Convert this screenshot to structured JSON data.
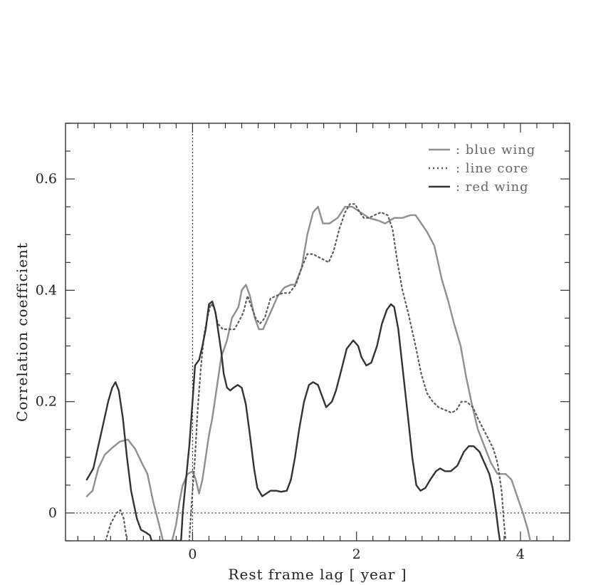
{
  "chart_data": {
    "type": "line",
    "title": "",
    "xlabel": "Rest frame lag [ year ]",
    "ylabel": "Correlation coefficient",
    "xlim": [
      -1.55,
      4.6
    ],
    "ylim": [
      -0.05,
      0.7
    ],
    "x_ticks": [
      0,
      2,
      4
    ],
    "x_tick_labels": [
      "0",
      "2",
      "4"
    ],
    "y_ticks": [
      0,
      0.2,
      0.4,
      0.6
    ],
    "y_tick_labels": [
      "0",
      "0.2",
      "0.4",
      "0.6"
    ],
    "grid": false,
    "legend_position": "top-right",
    "reference_lines": [
      {
        "orientation": "vertical",
        "value": 0,
        "style": "dotted"
      },
      {
        "orientation": "horizontal",
        "value": 0,
        "style": "dotted"
      }
    ],
    "series": [
      {
        "name": ": blue wing",
        "color": "#8f8f8f",
        "style": "solid",
        "points": [
          [
            -1.29,
            0.03
          ],
          [
            -1.22,
            0.04
          ],
          [
            -1.15,
            0.08
          ],
          [
            -1.07,
            0.105
          ],
          [
            -0.98,
            0.117
          ],
          [
            -0.89,
            0.128
          ],
          [
            -0.79,
            0.132
          ],
          [
            -0.7,
            0.115
          ],
          [
            -0.62,
            0.09
          ],
          [
            -0.55,
            0.07
          ],
          [
            -0.48,
            0.02
          ],
          [
            -0.41,
            -0.02
          ],
          [
            -0.36,
            -0.05
          ],
          [
            -0.25,
            -0.05
          ],
          [
            -0.2,
            -0.02
          ],
          [
            -0.16,
            0.02
          ],
          [
            -0.12,
            0.05
          ],
          [
            -0.06,
            0.07
          ],
          [
            0.0,
            0.075
          ],
          [
            0.04,
            0.06
          ],
          [
            0.08,
            0.035
          ],
          [
            0.12,
            0.06
          ],
          [
            0.16,
            0.1
          ],
          [
            0.2,
            0.14
          ],
          [
            0.24,
            0.17
          ],
          [
            0.28,
            0.21
          ],
          [
            0.35,
            0.28
          ],
          [
            0.42,
            0.31
          ],
          [
            0.48,
            0.35
          ],
          [
            0.56,
            0.37
          ],
          [
            0.6,
            0.4
          ],
          [
            0.65,
            0.41
          ],
          [
            0.7,
            0.39
          ],
          [
            0.76,
            0.35
          ],
          [
            0.81,
            0.33
          ],
          [
            0.86,
            0.33
          ],
          [
            0.95,
            0.36
          ],
          [
            1.04,
            0.39
          ],
          [
            1.12,
            0.405
          ],
          [
            1.2,
            0.41
          ],
          [
            1.25,
            0.41
          ],
          [
            1.33,
            0.44
          ],
          [
            1.4,
            0.5
          ],
          [
            1.47,
            0.54
          ],
          [
            1.53,
            0.55
          ],
          [
            1.59,
            0.52
          ],
          [
            1.67,
            0.52
          ],
          [
            1.77,
            0.53
          ],
          [
            1.86,
            0.55
          ],
          [
            1.95,
            0.55
          ],
          [
            2.05,
            0.54
          ],
          [
            2.15,
            0.53
          ],
          [
            2.27,
            0.525
          ],
          [
            2.35,
            0.52
          ],
          [
            2.46,
            0.53
          ],
          [
            2.56,
            0.53
          ],
          [
            2.66,
            0.535
          ],
          [
            2.72,
            0.535
          ],
          [
            2.79,
            0.52
          ],
          [
            2.86,
            0.505
          ],
          [
            2.95,
            0.48
          ],
          [
            3.04,
            0.42
          ],
          [
            3.12,
            0.38
          ],
          [
            3.19,
            0.34
          ],
          [
            3.27,
            0.3
          ],
          [
            3.33,
            0.25
          ],
          [
            3.4,
            0.2
          ],
          [
            3.48,
            0.15
          ],
          [
            3.56,
            0.12
          ],
          [
            3.64,
            0.09
          ],
          [
            3.72,
            0.07
          ],
          [
            3.82,
            0.07
          ],
          [
            3.89,
            0.06
          ],
          [
            3.96,
            0.03
          ],
          [
            4.03,
            0.0
          ],
          [
            4.09,
            -0.03
          ],
          [
            4.12,
            -0.05
          ]
        ]
      },
      {
        "name": ": line core",
        "color": "#5a5a5a",
        "style": "dotted",
        "points": [
          [
            -1.06,
            -0.05
          ],
          [
            -1.0,
            -0.02
          ],
          [
            -0.93,
            0.0
          ],
          [
            -0.88,
            0.005
          ],
          [
            -0.84,
            -0.01
          ],
          [
            -0.8,
            -0.05
          ],
          [
            -0.04,
            -0.05
          ],
          [
            -0.01,
            0.02
          ],
          [
            0.03,
            0.1
          ],
          [
            0.06,
            0.18
          ],
          [
            0.1,
            0.26
          ],
          [
            0.14,
            0.32
          ],
          [
            0.18,
            0.35
          ],
          [
            0.22,
            0.375
          ],
          [
            0.26,
            0.37
          ],
          [
            0.31,
            0.34
          ],
          [
            0.37,
            0.33
          ],
          [
            0.45,
            0.33
          ],
          [
            0.51,
            0.33
          ],
          [
            0.55,
            0.34
          ],
          [
            0.62,
            0.36
          ],
          [
            0.67,
            0.39
          ],
          [
            0.72,
            0.37
          ],
          [
            0.77,
            0.35
          ],
          [
            0.82,
            0.34
          ],
          [
            0.88,
            0.35
          ],
          [
            0.95,
            0.385
          ],
          [
            1.02,
            0.39
          ],
          [
            1.1,
            0.395
          ],
          [
            1.18,
            0.395
          ],
          [
            1.26,
            0.41
          ],
          [
            1.33,
            0.44
          ],
          [
            1.4,
            0.465
          ],
          [
            1.47,
            0.465
          ],
          [
            1.53,
            0.46
          ],
          [
            1.6,
            0.455
          ],
          [
            1.66,
            0.45
          ],
          [
            1.72,
            0.47
          ],
          [
            1.79,
            0.51
          ],
          [
            1.86,
            0.54
          ],
          [
            1.92,
            0.555
          ],
          [
            1.98,
            0.555
          ],
          [
            2.04,
            0.54
          ],
          [
            2.09,
            0.53
          ],
          [
            2.15,
            0.53
          ],
          [
            2.22,
            0.535
          ],
          [
            2.3,
            0.54
          ],
          [
            2.38,
            0.535
          ],
          [
            2.44,
            0.51
          ],
          [
            2.5,
            0.45
          ],
          [
            2.56,
            0.4
          ],
          [
            2.63,
            0.36
          ],
          [
            2.72,
            0.3
          ],
          [
            2.79,
            0.25
          ],
          [
            2.86,
            0.215
          ],
          [
            2.93,
            0.2
          ],
          [
            3.0,
            0.19
          ],
          [
            3.08,
            0.185
          ],
          [
            3.16,
            0.18
          ],
          [
            3.22,
            0.185
          ],
          [
            3.28,
            0.2
          ],
          [
            3.34,
            0.2
          ],
          [
            3.42,
            0.19
          ],
          [
            3.48,
            0.17
          ],
          [
            3.55,
            0.15
          ],
          [
            3.62,
            0.13
          ],
          [
            3.67,
            0.115
          ],
          [
            3.72,
            0.09
          ],
          [
            3.77,
            0.04
          ],
          [
            3.79,
            0.0
          ],
          [
            3.8,
            -0.02
          ],
          [
            3.82,
            -0.05
          ]
        ]
      },
      {
        "name": ": red wing",
        "color": "#333333",
        "style": "solid",
        "points": [
          [
            -1.29,
            0.06
          ],
          [
            -1.21,
            0.08
          ],
          [
            -1.15,
            0.12
          ],
          [
            -1.09,
            0.16
          ],
          [
            -1.03,
            0.2
          ],
          [
            -0.98,
            0.225
          ],
          [
            -0.94,
            0.235
          ],
          [
            -0.9,
            0.22
          ],
          [
            -0.85,
            0.17
          ],
          [
            -0.8,
            0.1
          ],
          [
            -0.75,
            0.04
          ],
          [
            -0.68,
            -0.01
          ],
          [
            -0.63,
            -0.03
          ],
          [
            -0.57,
            -0.035
          ],
          [
            -0.52,
            -0.04
          ],
          [
            -0.5,
            -0.05
          ],
          [
            -0.14,
            -0.05
          ],
          [
            -0.12,
            0.0
          ],
          [
            -0.08,
            0.06
          ],
          [
            -0.04,
            0.12
          ],
          [
            0.0,
            0.2
          ],
          [
            0.03,
            0.265
          ],
          [
            0.08,
            0.275
          ],
          [
            0.12,
            0.3
          ],
          [
            0.16,
            0.33
          ],
          [
            0.2,
            0.375
          ],
          [
            0.24,
            0.38
          ],
          [
            0.28,
            0.36
          ],
          [
            0.31,
            0.33
          ],
          [
            0.35,
            0.29
          ],
          [
            0.38,
            0.25
          ],
          [
            0.42,
            0.225
          ],
          [
            0.46,
            0.22
          ],
          [
            0.5,
            0.225
          ],
          [
            0.55,
            0.23
          ],
          [
            0.6,
            0.225
          ],
          [
            0.65,
            0.195
          ],
          [
            0.7,
            0.14
          ],
          [
            0.75,
            0.08
          ],
          [
            0.79,
            0.045
          ],
          [
            0.85,
            0.03
          ],
          [
            0.9,
            0.035
          ],
          [
            0.95,
            0.04
          ],
          [
            1.02,
            0.04
          ],
          [
            1.08,
            0.038
          ],
          [
            1.15,
            0.04
          ],
          [
            1.2,
            0.06
          ],
          [
            1.25,
            0.1
          ],
          [
            1.3,
            0.15
          ],
          [
            1.36,
            0.2
          ],
          [
            1.42,
            0.23
          ],
          [
            1.47,
            0.235
          ],
          [
            1.53,
            0.23
          ],
          [
            1.58,
            0.21
          ],
          [
            1.63,
            0.19
          ],
          [
            1.7,
            0.2
          ],
          [
            1.75,
            0.22
          ],
          [
            1.82,
            0.26
          ],
          [
            1.88,
            0.295
          ],
          [
            1.96,
            0.31
          ],
          [
            2.02,
            0.3
          ],
          [
            2.06,
            0.28
          ],
          [
            2.12,
            0.265
          ],
          [
            2.18,
            0.27
          ],
          [
            2.25,
            0.3
          ],
          [
            2.31,
            0.34
          ],
          [
            2.37,
            0.365
          ],
          [
            2.42,
            0.375
          ],
          [
            2.46,
            0.37
          ],
          [
            2.51,
            0.33
          ],
          [
            2.57,
            0.25
          ],
          [
            2.63,
            0.17
          ],
          [
            2.68,
            0.1
          ],
          [
            2.73,
            0.05
          ],
          [
            2.78,
            0.04
          ],
          [
            2.84,
            0.045
          ],
          [
            2.9,
            0.06
          ],
          [
            2.97,
            0.075
          ],
          [
            3.02,
            0.08
          ],
          [
            3.08,
            0.075
          ],
          [
            3.15,
            0.075
          ],
          [
            3.23,
            0.085
          ],
          [
            3.31,
            0.11
          ],
          [
            3.37,
            0.12
          ],
          [
            3.43,
            0.12
          ],
          [
            3.5,
            0.11
          ],
          [
            3.56,
            0.09
          ],
          [
            3.62,
            0.07
          ],
          [
            3.66,
            0.045
          ],
          [
            3.7,
            0.005
          ],
          [
            3.73,
            -0.03
          ],
          [
            3.75,
            -0.05
          ]
        ]
      }
    ]
  }
}
